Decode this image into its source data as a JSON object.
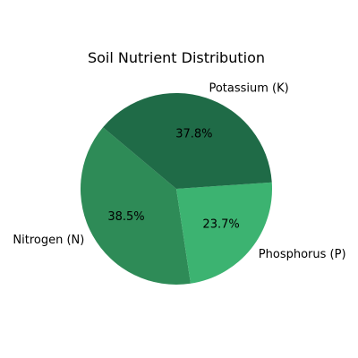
{
  "chart_data": {
    "type": "pie",
    "title": "Soil Nutrient Distribution",
    "slices": [
      {
        "label": "Nitrogen (N)",
        "value": 38.5,
        "percent_label": "38.5%",
        "color": "#2e8b57"
      },
      {
        "label": "Phosphorus (P)",
        "value": 23.7,
        "percent_label": "23.7%",
        "color": "#3cb371"
      },
      {
        "label": "Potassium (K)",
        "value": 37.8,
        "percent_label": "37.8%",
        "color": "#1f6b47"
      }
    ],
    "start_angle_deg": 140,
    "direction": "counterclockwise",
    "legend": "none"
  }
}
